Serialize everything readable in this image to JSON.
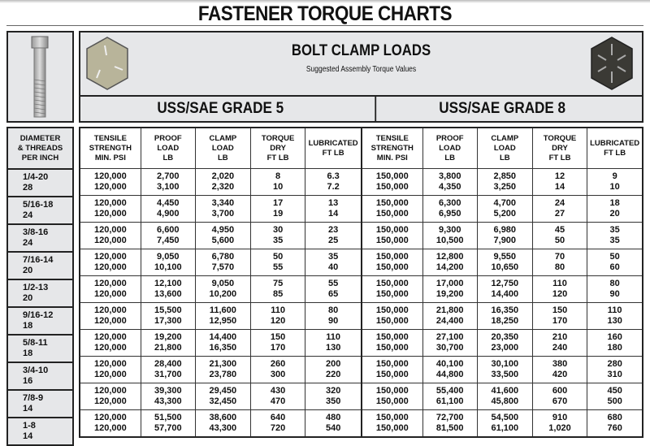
{
  "title": "FASTENER TORQUE CHARTS",
  "banner": {
    "heading": "BOLT CLAMP LOADS",
    "subheading": "Suggested Assembly Torque Values"
  },
  "grades": [
    "USS/SAE GRADE 5",
    "USS/SAE GRADE 8"
  ],
  "diameter_header": [
    "DIAMETER",
    "& THREADS",
    "PER INCH"
  ],
  "column_headers": [
    [
      "TENSILE",
      "STRENGTH",
      "MIN. PSI"
    ],
    [
      "PROOF",
      "LOAD",
      "LB"
    ],
    [
      "CLAMP",
      "LOAD",
      "LB"
    ],
    [
      "TORQUE",
      "DRY",
      "FT LB"
    ],
    [
      "LUBRICATED",
      "FT LB"
    ]
  ],
  "rows": [
    {
      "diameter": "1/4-20",
      "alt": "28",
      "grade5": [
        [
          "120,000",
          "2,700",
          "2,020",
          "8",
          "6.3"
        ],
        [
          "120,000",
          "3,100",
          "2,320",
          "10",
          "7.2"
        ]
      ],
      "grade8": [
        [
          "150,000",
          "3,800",
          "2,850",
          "12",
          "9"
        ],
        [
          "150,000",
          "4,350",
          "3,250",
          "14",
          "10"
        ]
      ]
    },
    {
      "diameter": "5/16-18",
      "alt": "24",
      "grade5": [
        [
          "120,000",
          "4,450",
          "3,340",
          "17",
          "13"
        ],
        [
          "120,000",
          "4,900",
          "3,700",
          "19",
          "14"
        ]
      ],
      "grade8": [
        [
          "150,000",
          "6,300",
          "4,700",
          "24",
          "18"
        ],
        [
          "150,000",
          "6,950",
          "5,200",
          "27",
          "20"
        ]
      ]
    },
    {
      "diameter": "3/8-16",
      "alt": "24",
      "grade5": [
        [
          "120,000",
          "6,600",
          "4,950",
          "30",
          "23"
        ],
        [
          "120,000",
          "7,450",
          "5,600",
          "35",
          "25"
        ]
      ],
      "grade8": [
        [
          "150,000",
          "9,300",
          "6,980",
          "45",
          "35"
        ],
        [
          "150,000",
          "10,500",
          "7,900",
          "50",
          "35"
        ]
      ]
    },
    {
      "diameter": "7/16-14",
      "alt": "20",
      "grade5": [
        [
          "120,000",
          "9,050",
          "6,780",
          "50",
          "35"
        ],
        [
          "120,000",
          "10,100",
          "7,570",
          "55",
          "40"
        ]
      ],
      "grade8": [
        [
          "150,000",
          "12,800",
          "9,550",
          "70",
          "50"
        ],
        [
          "150,000",
          "14,200",
          "10,650",
          "80",
          "60"
        ]
      ]
    },
    {
      "diameter": "1/2-13",
      "alt": "20",
      "grade5": [
        [
          "120,000",
          "12,100",
          "9,050",
          "75",
          "55"
        ],
        [
          "120,000",
          "13,600",
          "10,200",
          "85",
          "65"
        ]
      ],
      "grade8": [
        [
          "150,000",
          "17,000",
          "12,750",
          "110",
          "80"
        ],
        [
          "150,000",
          "19,200",
          "14,400",
          "120",
          "90"
        ]
      ]
    },
    {
      "diameter": "9/16-12",
      "alt": "18",
      "grade5": [
        [
          "120,000",
          "15,500",
          "11,600",
          "110",
          "80"
        ],
        [
          "120,000",
          "17,300",
          "12,950",
          "120",
          "90"
        ]
      ],
      "grade8": [
        [
          "150,000",
          "21,800",
          "16,350",
          "150",
          "110"
        ],
        [
          "150,000",
          "24,400",
          "18,250",
          "170",
          "130"
        ]
      ]
    },
    {
      "diameter": "5/8-11",
      "alt": "18",
      "grade5": [
        [
          "120,000",
          "19,200",
          "14,400",
          "150",
          "110"
        ],
        [
          "120,000",
          "21,800",
          "16,350",
          "170",
          "130"
        ]
      ],
      "grade8": [
        [
          "150,000",
          "27,100",
          "20,350",
          "210",
          "160"
        ],
        [
          "150,000",
          "30,700",
          "23,000",
          "240",
          "180"
        ]
      ]
    },
    {
      "diameter": "3/4-10",
      "alt": "16",
      "grade5": [
        [
          "120,000",
          "28,400",
          "21,300",
          "260",
          "200"
        ],
        [
          "120,000",
          "31,700",
          "23,780",
          "300",
          "220"
        ]
      ],
      "grade8": [
        [
          "150,000",
          "40,100",
          "30,100",
          "380",
          "280"
        ],
        [
          "150,000",
          "44,800",
          "33,500",
          "420",
          "310"
        ]
      ]
    },
    {
      "diameter": "7/8-9",
      "alt": "14",
      "grade5": [
        [
          "120,000",
          "39,300",
          "29,450",
          "430",
          "320"
        ],
        [
          "120,000",
          "43,300",
          "32,450",
          "470",
          "350"
        ]
      ],
      "grade8": [
        [
          "150,000",
          "55,400",
          "41,600",
          "600",
          "450"
        ],
        [
          "150,000",
          "61,100",
          "45,800",
          "670",
          "500"
        ]
      ]
    },
    {
      "diameter": "1-8",
      "alt": "14",
      "grade5": [
        [
          "120,000",
          "51,500",
          "38,600",
          "640",
          "480"
        ],
        [
          "120,000",
          "57,700",
          "43,300",
          "720",
          "540"
        ]
      ],
      "grade8": [
        [
          "150,000",
          "72,700",
          "54,500",
          "910",
          "680"
        ],
        [
          "150,000",
          "81,500",
          "61,100",
          "1,020",
          "760"
        ]
      ]
    }
  ]
}
